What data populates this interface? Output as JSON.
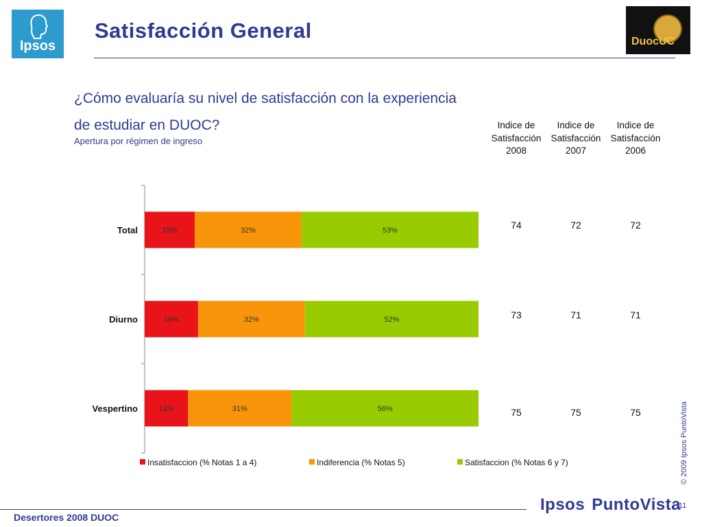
{
  "header": {
    "title": "Satisfacción General",
    "brand_logo_text": "Ipsos",
    "client_logo_text": "DuocUC"
  },
  "question": {
    "line1": "¿Cómo evaluaría su nivel de satisfacción con la experiencia",
    "line2": "de estudiar en DUOC?",
    "subtitle": "Apertura por régimen de ingreso"
  },
  "index_table": {
    "headers": [
      {
        "line1": "Indice de",
        "line2": "Satisfacción",
        "line3": "2008"
      },
      {
        "line1": "Indice de",
        "line2": "Satisfacción",
        "line3": "2007"
      },
      {
        "line1": "Indice de",
        "line2": "Satisfacción",
        "line3": "2006"
      }
    ],
    "rows": [
      {
        "label": "Total",
        "values": [
          "74",
          "72",
          "72"
        ]
      },
      {
        "label": "Diurno",
        "values": [
          "73",
          "71",
          "71"
        ]
      },
      {
        "label": "Vespertino",
        "values": [
          "75",
          "75",
          "75"
        ]
      }
    ]
  },
  "chart_data": {
    "type": "bar",
    "orientation": "horizontal",
    "stacked": true,
    "categories": [
      "Total",
      "Diurno",
      "Vespertino"
    ],
    "series": [
      {
        "name": "Insatisfaccion (% Notas 1 a 4)",
        "color": "#e8141a",
        "values": [
          15,
          16,
          13
        ],
        "labels": [
          "15%",
          "16%",
          "13%"
        ]
      },
      {
        "name": "Indiferencia (% Notas 5)",
        "color": "#f8950a",
        "values": [
          32,
          32,
          31
        ],
        "labels": [
          "32%",
          "32%",
          "31%"
        ]
      },
      {
        "name": "Satisfaccion (% Notas 6 y 7)",
        "color": "#99cc00",
        "values": [
          53,
          52,
          56
        ],
        "labels": [
          "53%",
          "52%",
          "56%"
        ]
      }
    ],
    "xlim": [
      0,
      100
    ],
    "legend": "bottom",
    "grid": false
  },
  "footer": {
    "left": "Desertores 2008 DUOC",
    "brand_a": "Ipsos",
    "brand_b": "PuntoVista",
    "copyright": "© 2009 Ipsos PuntoVista",
    "page_number": "11"
  }
}
